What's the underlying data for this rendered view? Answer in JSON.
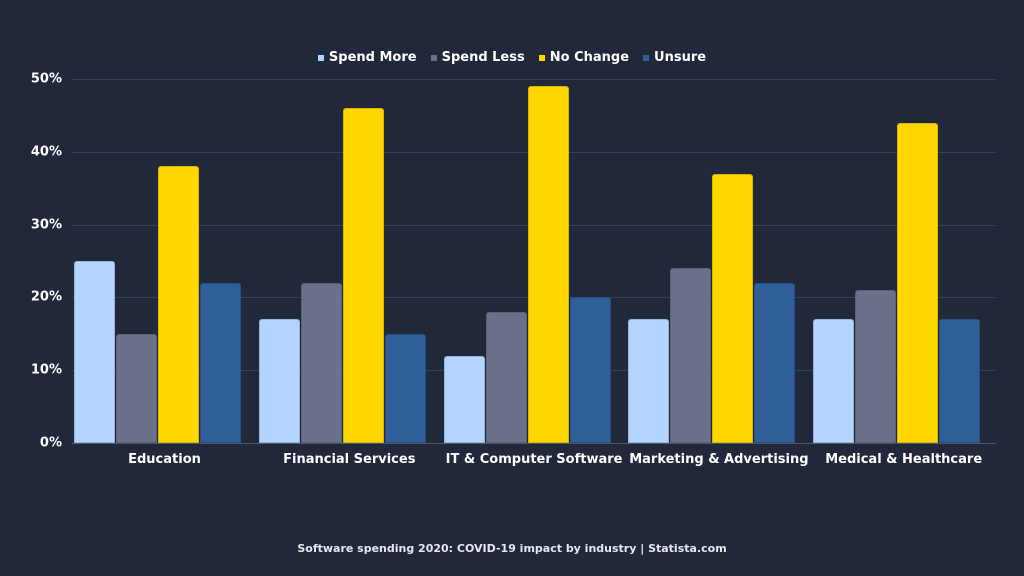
{
  "legend": [
    {
      "label": "Spend More",
      "color": "#b3d4ff"
    },
    {
      "label": "Spend Less",
      "color": "#6b718a"
    },
    {
      "label": "No Change",
      "color": "#ffd600"
    },
    {
      "label": "Unsure",
      "color": "#2e5f99"
    }
  ],
  "y_ticks": [
    "0%",
    "10%",
    "20%",
    "30%",
    "40%",
    "50%"
  ],
  "footer": "Software spending 2020: COVID-19 impact by industry | Statista.com",
  "chart_data": {
    "type": "bar",
    "title": "Software spending 2020: COVID-19 impact by industry",
    "categories": [
      "Education",
      "Financial Services",
      "IT & Computer Software",
      "Marketing & Advertising",
      "Medical & Healthcare"
    ],
    "series": [
      {
        "name": "Spend More",
        "color": "#b3d4ff",
        "values": [
          25,
          17,
          12,
          17,
          17
        ]
      },
      {
        "name": "Spend Less",
        "color": "#6b718a",
        "values": [
          15,
          22,
          18,
          24,
          21
        ]
      },
      {
        "name": "No Change",
        "color": "#ffd600",
        "values": [
          38,
          46,
          49,
          37,
          44
        ]
      },
      {
        "name": "Unsure",
        "color": "#2e5f99",
        "values": [
          22,
          15,
          20,
          22,
          17
        ]
      }
    ],
    "xlabel": "",
    "ylabel": "",
    "ylim": [
      0,
      50
    ],
    "y_unit": "%",
    "grid": true,
    "legend_position": "top"
  }
}
